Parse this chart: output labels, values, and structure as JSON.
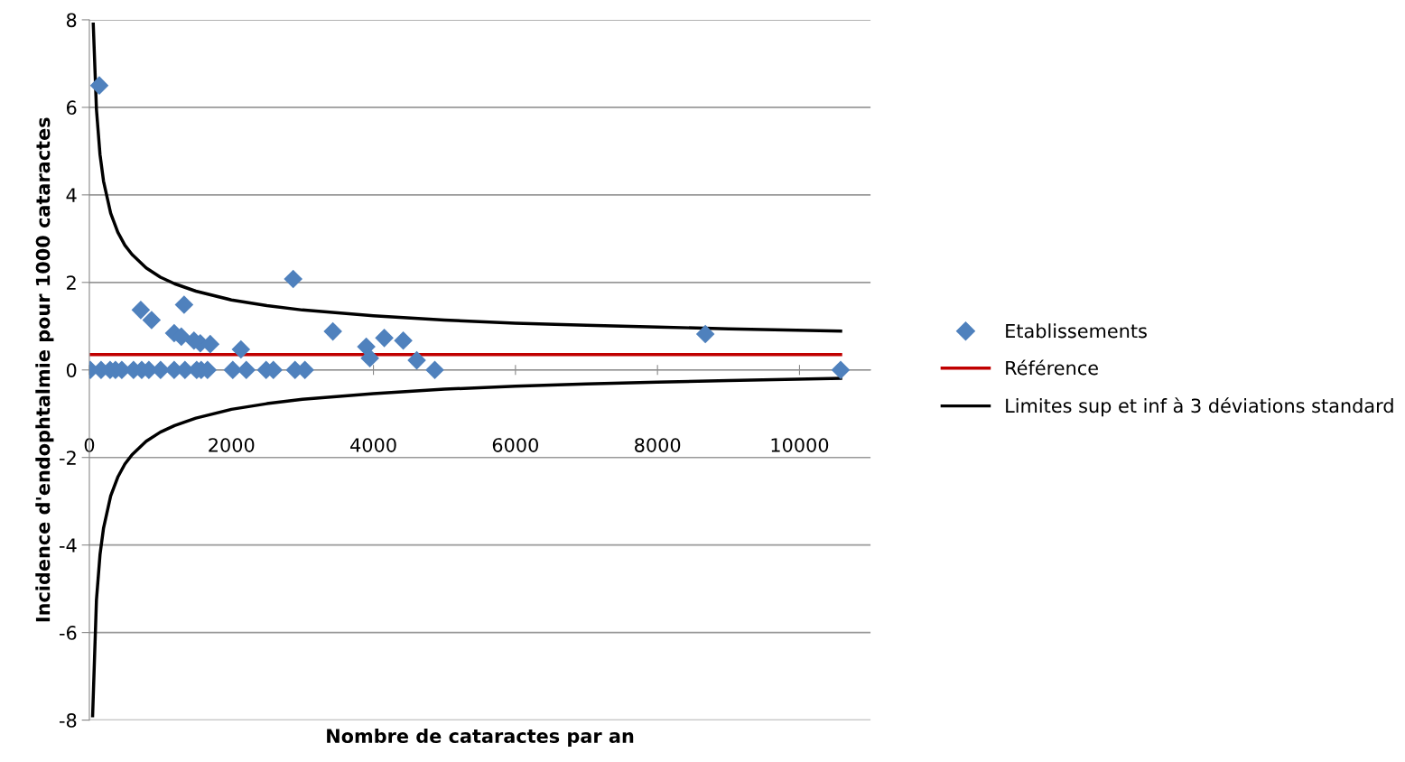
{
  "chart_data": {
    "type": "scatter",
    "xlabel": "Nombre de cataractes par an",
    "ylabel": "Incidence d'endophtalmie pour 1000 cataractes",
    "xlim": [
      0,
      11000
    ],
    "xticks": [
      0,
      2000,
      4000,
      6000,
      8000,
      10000
    ],
    "ylim": [
      -8,
      8
    ],
    "yticks": [
      -8,
      -6,
      -4,
      -2,
      0,
      2,
      4,
      6,
      8
    ],
    "grid": "y",
    "legend": "right",
    "series": [
      {
        "name": "Etablissements",
        "marker": "diamond",
        "color": "#4f81bd",
        "x": [
          140,
          724,
          876,
          1334,
          1194,
          1295,
          1473,
          1562,
          1702,
          2134,
          2870,
          3429,
          3899,
          3950,
          4153,
          4420,
          4610,
          4864,
          8674,
          10579,
          13,
          165,
          292,
          368,
          457,
          622,
          737,
          838,
          1003,
          1194,
          1346,
          1511,
          1575,
          1664,
          2020,
          2210,
          2489,
          2591,
          2896,
          3035
        ],
        "values": [
          6.5,
          1.37,
          1.14,
          1.49,
          0.84,
          0.76,
          0.67,
          0.61,
          0.59,
          0.47,
          2.08,
          0.88,
          0.53,
          0.27,
          0.73,
          0.67,
          0.22,
          0,
          0.82,
          0,
          0,
          0,
          0,
          0,
          0,
          0,
          0,
          0,
          0,
          0,
          0,
          0,
          0,
          0,
          0,
          0,
          0,
          0,
          0,
          0
        ]
      },
      {
        "name": "Référence",
        "type": "line",
        "marker": "none",
        "color": "#c00000",
        "x": [
          25,
          10579
        ],
        "values": [
          0.35,
          0.35
        ]
      },
      {
        "name": "Limites sup et inf à 3 déviations standard",
        "type": "line",
        "marker": "none",
        "color": "#000000",
        "x": [
          55,
          100,
          150,
          200,
          300,
          400,
          500,
          600,
          800,
          1000,
          1200,
          1500,
          2000,
          2500,
          3000,
          4000,
          5000,
          6000,
          7000,
          8000,
          9000,
          10579
        ],
        "values": [
          7.9,
          5.95,
          4.92,
          4.31,
          3.58,
          3.15,
          2.85,
          2.64,
          2.33,
          2.12,
          1.97,
          1.8,
          1.6,
          1.47,
          1.37,
          1.24,
          1.14,
          1.07,
          1.02,
          0.98,
          0.94,
          0.89
        ]
      },
      {
        "type": "line",
        "marker": "none",
        "color": "#000000",
        "x": [
          46,
          100,
          150,
          200,
          300,
          400,
          500,
          600,
          800,
          1000,
          1200,
          1500,
          2000,
          2500,
          3000,
          4000,
          5000,
          6000,
          7000,
          8000,
          9000,
          10579
        ],
        "values": [
          -7.9,
          -5.25,
          -4.22,
          -3.61,
          -2.88,
          -2.45,
          -2.15,
          -1.94,
          -1.63,
          -1.42,
          -1.27,
          -1.1,
          -0.9,
          -0.77,
          -0.67,
          -0.54,
          -0.44,
          -0.37,
          -0.32,
          -0.28,
          -0.24,
          -0.19
        ]
      }
    ]
  }
}
